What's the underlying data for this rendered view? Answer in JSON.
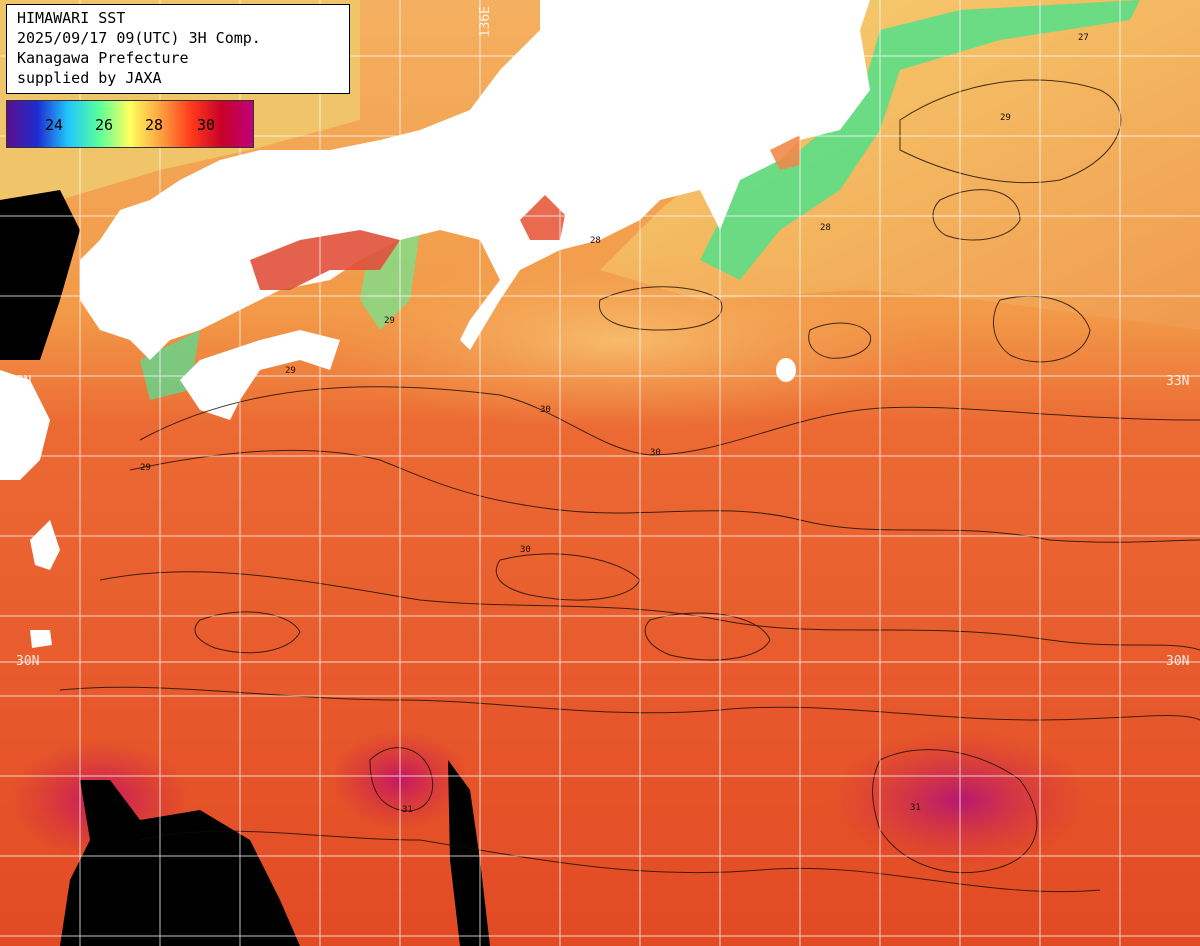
{
  "header": {
    "title": "HIMAWARI SST",
    "datetime": "2025/09/17 09(UTC) 3H Comp.",
    "region": "Kanagawa Prefecture",
    "credit": "supplied by JAXA"
  },
  "legend": {
    "ticks": [
      "24",
      "26",
      "28",
      "30"
    ],
    "colors": [
      "#5a0f8c",
      "#1e2dd2",
      "#20c8ff",
      "#5aff9a",
      "#ffff60",
      "#ffa040",
      "#ff3a1a",
      "#c80028",
      "#c0007a"
    ]
  },
  "grid_labels": {
    "lat_33": "33N",
    "lat_30": "30N",
    "lon_136": "136E"
  },
  "contour_labels": [
    "27",
    "28",
    "29",
    "30",
    "31"
  ],
  "colors": {
    "land": "#ffffff",
    "no_data": "#000000",
    "grid": "#ffffff"
  }
}
